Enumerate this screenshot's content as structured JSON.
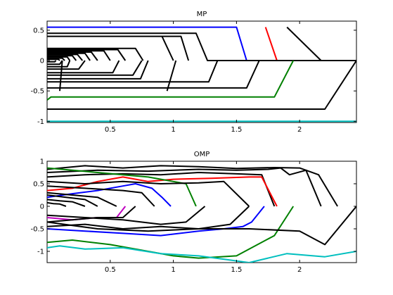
{
  "chart_data": [
    {
      "type": "line",
      "title": "MP",
      "xlabel": "",
      "ylabel": "",
      "xlim": [
        0,
        2.45
      ],
      "ylim": [
        -1.02,
        0.65
      ],
      "xticks": [
        "0.5",
        "1",
        "1.5",
        "2"
      ],
      "xtick_values": [
        0.5,
        1,
        1.5,
        2
      ],
      "yticks": [
        "0.5",
        "0",
        "-0.5",
        "-1"
      ],
      "ytick_values": [
        0.5,
        0,
        -0.5,
        -1
      ],
      "colors": {
        "black": "#000000",
        "blue": "#0000ff",
        "red": "#ff0000",
        "green": "#008000",
        "cyan": "#00bfbf",
        "magenta": "#bf00bf"
      },
      "series": [
        {
          "color": "blue",
          "x": [
            0,
            1.5,
            1.58
          ],
          "y": [
            0.55,
            0.55,
            0
          ]
        },
        {
          "color": "red",
          "x": [
            1.73,
            1.82
          ],
          "y": [
            0.55,
            0
          ]
        },
        {
          "color": "black",
          "x": [
            1.9,
            2.17
          ],
          "y": [
            0.55,
            0
          ]
        },
        {
          "color": "black",
          "x": [
            0,
            1.18,
            1.27,
            2.45
          ],
          "y": [
            0.45,
            0.45,
            0,
            0
          ]
        },
        {
          "color": "black",
          "x": [
            0,
            1.06,
            1.12
          ],
          "y": [
            0.4,
            0.4,
            0
          ]
        },
        {
          "color": "black",
          "x": [
            0.91,
            1
          ],
          "y": [
            0.4,
            0
          ]
        },
        {
          "color": "black",
          "x": [
            0,
            0.7,
            0.76
          ],
          "y": [
            0.2,
            0.2,
            0
          ]
        },
        {
          "color": "black",
          "x": [
            0,
            0.56,
            0.62
          ],
          "y": [
            0.18,
            0.18,
            0
          ]
        },
        {
          "color": "black",
          "x": [
            0,
            0.45,
            0.5
          ],
          "y": [
            0.16,
            0.16,
            0
          ]
        },
        {
          "color": "black",
          "x": [
            0,
            0.35,
            0.4
          ],
          "y": [
            0.14,
            0.14,
            0
          ]
        },
        {
          "color": "black",
          "x": [
            0,
            0.3,
            0.34
          ],
          "y": [
            0.12,
            0.12,
            0
          ]
        },
        {
          "color": "black",
          "x": [
            0,
            0.24,
            0.28
          ],
          "y": [
            0.1,
            0.1,
            0
          ]
        },
        {
          "color": "black",
          "x": [
            0,
            0.2,
            0.23
          ],
          "y": [
            0.08,
            0.08,
            0
          ]
        },
        {
          "color": "black",
          "x": [
            0,
            0.16,
            0.18
          ],
          "y": [
            0.06,
            0.06,
            0
          ]
        },
        {
          "color": "black",
          "x": [
            0,
            0.12,
            0.14
          ],
          "y": [
            0.04,
            0.04,
            0
          ]
        },
        {
          "color": "black",
          "x": [
            0,
            0.09,
            0.1
          ],
          "y": [
            0.02,
            0.02,
            0
          ]
        },
        {
          "color": "black",
          "x": [
            0,
            0.06,
            0.07
          ],
          "y": [
            -0.02,
            -0.02,
            0
          ]
        },
        {
          "color": "black",
          "x": [
            0,
            0.1,
            0.12
          ],
          "y": [
            -0.06,
            -0.06,
            0
          ]
        },
        {
          "color": "black",
          "x": [
            0,
            0.16,
            0.18
          ],
          "y": [
            -0.1,
            -0.1,
            0
          ]
        },
        {
          "color": "black",
          "x": [
            0,
            0.25,
            0.3
          ],
          "y": [
            -0.14,
            -0.14,
            0
          ]
        },
        {
          "color": "black",
          "x": [
            0,
            0.52,
            0.57
          ],
          "y": [
            -0.2,
            -0.2,
            0
          ]
        },
        {
          "color": "black",
          "x": [
            0,
            0.68,
            0.75
          ],
          "y": [
            -0.24,
            -0.24,
            0
          ]
        },
        {
          "color": "black",
          "x": [
            0,
            0.74,
            0.8
          ],
          "y": [
            -0.3,
            -0.3,
            0
          ]
        },
        {
          "color": "black",
          "x": [
            0,
            1.28,
            1.35
          ],
          "y": [
            -0.35,
            -0.35,
            0
          ]
        },
        {
          "color": "black",
          "x": [
            0,
            1.58,
            1.68
          ],
          "y": [
            -0.45,
            -0.45,
            0
          ]
        },
        {
          "color": "green",
          "x": [
            0,
            0.03,
            1.8,
            1.95
          ],
          "y": [
            -0.65,
            -0.6,
            -0.6,
            0
          ]
        },
        {
          "color": "black",
          "x": [
            0,
            0.06,
            2.2,
            2.45
          ],
          "y": [
            -0.8,
            -0.8,
            -0.8,
            0
          ]
        },
        {
          "color": "black",
          "x": [
            0.95,
            1.02
          ],
          "y": [
            -0.5,
            0
          ]
        },
        {
          "color": "black",
          "x": [
            0.1,
            0.12
          ],
          "y": [
            -0.5,
            0
          ]
        },
        {
          "color": "cyan",
          "x": [
            0,
            2.45
          ],
          "y": [
            -1,
            -1
          ]
        }
      ]
    },
    {
      "type": "line",
      "title": "OMP",
      "xlabel": "",
      "ylabel": "",
      "xlim": [
        0,
        2.45
      ],
      "ylim": [
        -1.25,
        1
      ],
      "xticks": [
        "0.5",
        "1",
        "1.5",
        "2"
      ],
      "xtick_values": [
        0.5,
        1,
        1.5,
        2
      ],
      "yticks": [
        "1",
        "0.5",
        "0",
        "-0.5",
        "-1"
      ],
      "ytick_values": [
        1,
        0.5,
        0,
        -0.5,
        -1
      ],
      "colors": {
        "black": "#000000",
        "blue": "#0000ff",
        "red": "#ff0000",
        "green": "#008000",
        "cyan": "#00bfbf",
        "magenta": "#bf00bf"
      },
      "series": [
        {
          "color": "black",
          "x": [
            0,
            0.3,
            0.6,
            0.9,
            1.2,
            1.5,
            1.8,
            2.0,
            2.15,
            2.3
          ],
          "y": [
            0.82,
            0.9,
            0.85,
            0.9,
            0.88,
            0.84,
            0.86,
            0.85,
            0.7,
            0
          ]
        },
        {
          "color": "black",
          "x": [
            0,
            0.4,
            0.8,
            1.2,
            1.5,
            1.75,
            1.85,
            1.92,
            2.05,
            2.17
          ],
          "y": [
            0.75,
            0.8,
            0.78,
            0.82,
            0.8,
            0.82,
            0.85,
            0.7,
            0.8,
            0
          ]
        },
        {
          "color": "black",
          "x": [
            0,
            0.3,
            0.6,
            0.9,
            1.2,
            1.5,
            1.7,
            1.8
          ],
          "y": [
            0.65,
            0.7,
            0.72,
            0.7,
            0.75,
            0.72,
            0.7,
            0
          ]
        },
        {
          "color": "red",
          "x": [
            0,
            0.2,
            0.4,
            0.6,
            0.8,
            1.0,
            1.3,
            1.6,
            1.7,
            1.82
          ],
          "y": [
            0.35,
            0.4,
            0.55,
            0.65,
            0.55,
            0.6,
            0.62,
            0.65,
            0.65,
            0
          ]
        },
        {
          "color": "green",
          "x": [
            0,
            0.2,
            0.4,
            0.6,
            0.8,
            1.0,
            1.1,
            1.18
          ],
          "y": [
            0.85,
            0.8,
            0.75,
            0.7,
            0.65,
            0.55,
            0.5,
            0
          ]
        },
        {
          "color": "blue",
          "x": [
            0,
            0.2,
            0.4,
            0.6,
            0.7,
            0.83,
            0.91,
            0.98
          ],
          "y": [
            0.2,
            0.28,
            0.35,
            0.45,
            0.5,
            0.4,
            0.2,
            0
          ]
        },
        {
          "color": "black",
          "x": [
            0,
            0.3,
            0.6,
            0.9,
            1.2,
            1.4,
            1.6
          ],
          "y": [
            0.55,
            0.5,
            0.55,
            0.5,
            0.52,
            0.55,
            0
          ]
        },
        {
          "color": "black",
          "x": [
            0,
            0.3,
            0.6,
            0.75,
            0.85
          ],
          "y": [
            0.45,
            0.4,
            0.35,
            0.3,
            0
          ]
        },
        {
          "color": "black",
          "x": [
            0,
            0.2,
            0.4,
            0.55
          ],
          "y": [
            0.3,
            0.25,
            0.2,
            0
          ]
        },
        {
          "color": "black",
          "x": [
            0,
            0.15,
            0.3,
            0.4
          ],
          "y": [
            0.25,
            0.2,
            0.15,
            0
          ]
        },
        {
          "color": "black",
          "x": [
            0,
            0.1,
            0.2,
            0.3
          ],
          "y": [
            0.15,
            0.12,
            0.1,
            0
          ]
        },
        {
          "color": "black",
          "x": [
            0,
            0.05,
            0.1,
            0.15
          ],
          "y": [
            0.08,
            0.06,
            0.05,
            0
          ]
        },
        {
          "color": "magenta",
          "x": [
            0,
            0.2,
            0.4,
            0.55,
            0.62
          ],
          "y": [
            -0.25,
            -0.3,
            -0.25,
            -0.25,
            0
          ]
        },
        {
          "color": "black",
          "x": [
            0,
            0.2,
            0.4,
            0.6,
            0.7
          ],
          "y": [
            -0.35,
            -0.3,
            -0.25,
            -0.25,
            0
          ]
        },
        {
          "color": "black",
          "x": [
            0,
            0.3,
            0.6,
            0.9,
            1.2,
            1.45,
            1.6
          ],
          "y": [
            -0.45,
            -0.4,
            -0.5,
            -0.45,
            -0.5,
            -0.4,
            0
          ]
        },
        {
          "color": "blue",
          "x": [
            0,
            0.3,
            0.6,
            0.9,
            1.2,
            1.4,
            1.55,
            1.62,
            1.72
          ],
          "y": [
            -0.5,
            -0.55,
            -0.6,
            -0.65,
            -0.55,
            -0.5,
            -0.45,
            -0.35,
            0
          ]
        },
        {
          "color": "green",
          "x": [
            0,
            0.2,
            0.5,
            0.8,
            1.0,
            1.2,
            1.5,
            1.8,
            1.95
          ],
          "y": [
            -0.8,
            -0.75,
            -0.85,
            -1.0,
            -1.1,
            -1.15,
            -1.1,
            -0.65,
            0
          ]
        },
        {
          "color": "black",
          "x": [
            0,
            0.4,
            0.8,
            1.2,
            1.6,
            2.0,
            2.2,
            2.45
          ],
          "y": [
            -0.35,
            -0.5,
            -0.55,
            -0.5,
            -0.5,
            -0.55,
            -0.85,
            0
          ]
        },
        {
          "color": "black",
          "x": [
            0,
            0.3,
            0.6,
            0.9,
            1.1,
            1.25
          ],
          "y": [
            -0.2,
            -0.25,
            -0.3,
            -0.4,
            -0.35,
            0
          ]
        },
        {
          "color": "cyan",
          "x": [
            0,
            0.1,
            0.3,
            0.6,
            0.9,
            1.2,
            1.6,
            1.9,
            2.2,
            2.45
          ],
          "y": [
            -0.92,
            -0.88,
            -0.95,
            -0.92,
            -1.05,
            -1.1,
            -1.25,
            -1.05,
            -1.12,
            -1.0
          ]
        }
      ]
    }
  ]
}
